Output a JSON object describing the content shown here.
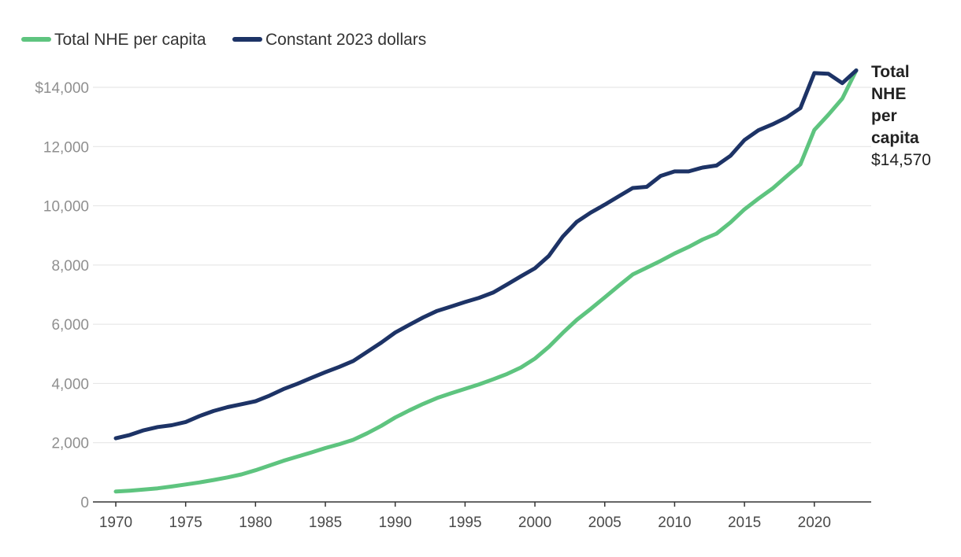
{
  "chart_data": {
    "type": "line",
    "title": "",
    "xlabel": "",
    "ylabel": "",
    "ylim": [
      0,
      14000
    ],
    "xlim": [
      1970,
      2023
    ],
    "grid": "horizontal",
    "legend_position": "top-left",
    "y_ticks": [
      {
        "value": 0,
        "label": "0"
      },
      {
        "value": 2000,
        "label": "2,000"
      },
      {
        "value": 4000,
        "label": "4,000"
      },
      {
        "value": 6000,
        "label": "6,000"
      },
      {
        "value": 8000,
        "label": "8,000"
      },
      {
        "value": 10000,
        "label": "10,000"
      },
      {
        "value": 12000,
        "label": "12,000"
      },
      {
        "value": 14000,
        "label": "$14,000"
      }
    ],
    "x_ticks": [
      {
        "value": 1970,
        "label": "1970"
      },
      {
        "value": 1975,
        "label": "1975"
      },
      {
        "value": 1980,
        "label": "1980"
      },
      {
        "value": 1985,
        "label": "1985"
      },
      {
        "value": 1990,
        "label": "1990"
      },
      {
        "value": 1995,
        "label": "1995"
      },
      {
        "value": 2000,
        "label": "2000"
      },
      {
        "value": 2005,
        "label": "2005"
      },
      {
        "value": 2010,
        "label": "2010"
      },
      {
        "value": 2015,
        "label": "2015"
      },
      {
        "value": 2020,
        "label": "2020"
      }
    ],
    "x": [
      1970,
      1971,
      1972,
      1973,
      1974,
      1975,
      1976,
      1977,
      1978,
      1979,
      1980,
      1981,
      1982,
      1983,
      1984,
      1985,
      1986,
      1987,
      1988,
      1989,
      1990,
      1991,
      1992,
      1993,
      1994,
      1995,
      1996,
      1997,
      1998,
      1999,
      2000,
      2001,
      2002,
      2003,
      2004,
      2005,
      2006,
      2007,
      2008,
      2009,
      2010,
      2011,
      2012,
      2013,
      2014,
      2015,
      2016,
      2017,
      2018,
      2019,
      2020,
      2021,
      2022,
      2023
    ],
    "series": [
      {
        "name": "Total NHE per capita",
        "color": "#5ec47f",
        "values": [
          350,
          380,
          420,
          460,
          520,
          590,
          660,
          740,
          830,
          930,
          1070,
          1230,
          1390,
          1530,
          1670,
          1820,
          1950,
          2100,
          2320,
          2570,
          2850,
          3090,
          3310,
          3510,
          3670,
          3820,
          3970,
          4140,
          4320,
          4540,
          4840,
          5240,
          5710,
          6150,
          6520,
          6910,
          7300,
          7680,
          7910,
          8140,
          8390,
          8610,
          8860,
          9060,
          9440,
          9880,
          10240,
          10580,
          10990,
          11400,
          12560,
          13070,
          13620,
          14570
        ]
      },
      {
        "name": "Constant 2023 dollars",
        "color": "#1d3366",
        "values": [
          2150,
          2260,
          2420,
          2530,
          2590,
          2700,
          2900,
          3070,
          3200,
          3300,
          3400,
          3590,
          3810,
          3990,
          4190,
          4380,
          4560,
          4760,
          5070,
          5380,
          5720,
          5980,
          6230,
          6450,
          6600,
          6750,
          6890,
          7070,
          7340,
          7620,
          7890,
          8310,
          8960,
          9460,
          9770,
          10040,
          10320,
          10600,
          10640,
          11010,
          11160,
          11160,
          11290,
          11360,
          11690,
          12220,
          12550,
          12750,
          12980,
          13300,
          14480,
          14460,
          14140,
          14570
        ]
      }
    ],
    "end_label": {
      "title_lines": [
        "Total",
        "NHE",
        "per",
        "capita"
      ],
      "value": "$14,570"
    }
  }
}
